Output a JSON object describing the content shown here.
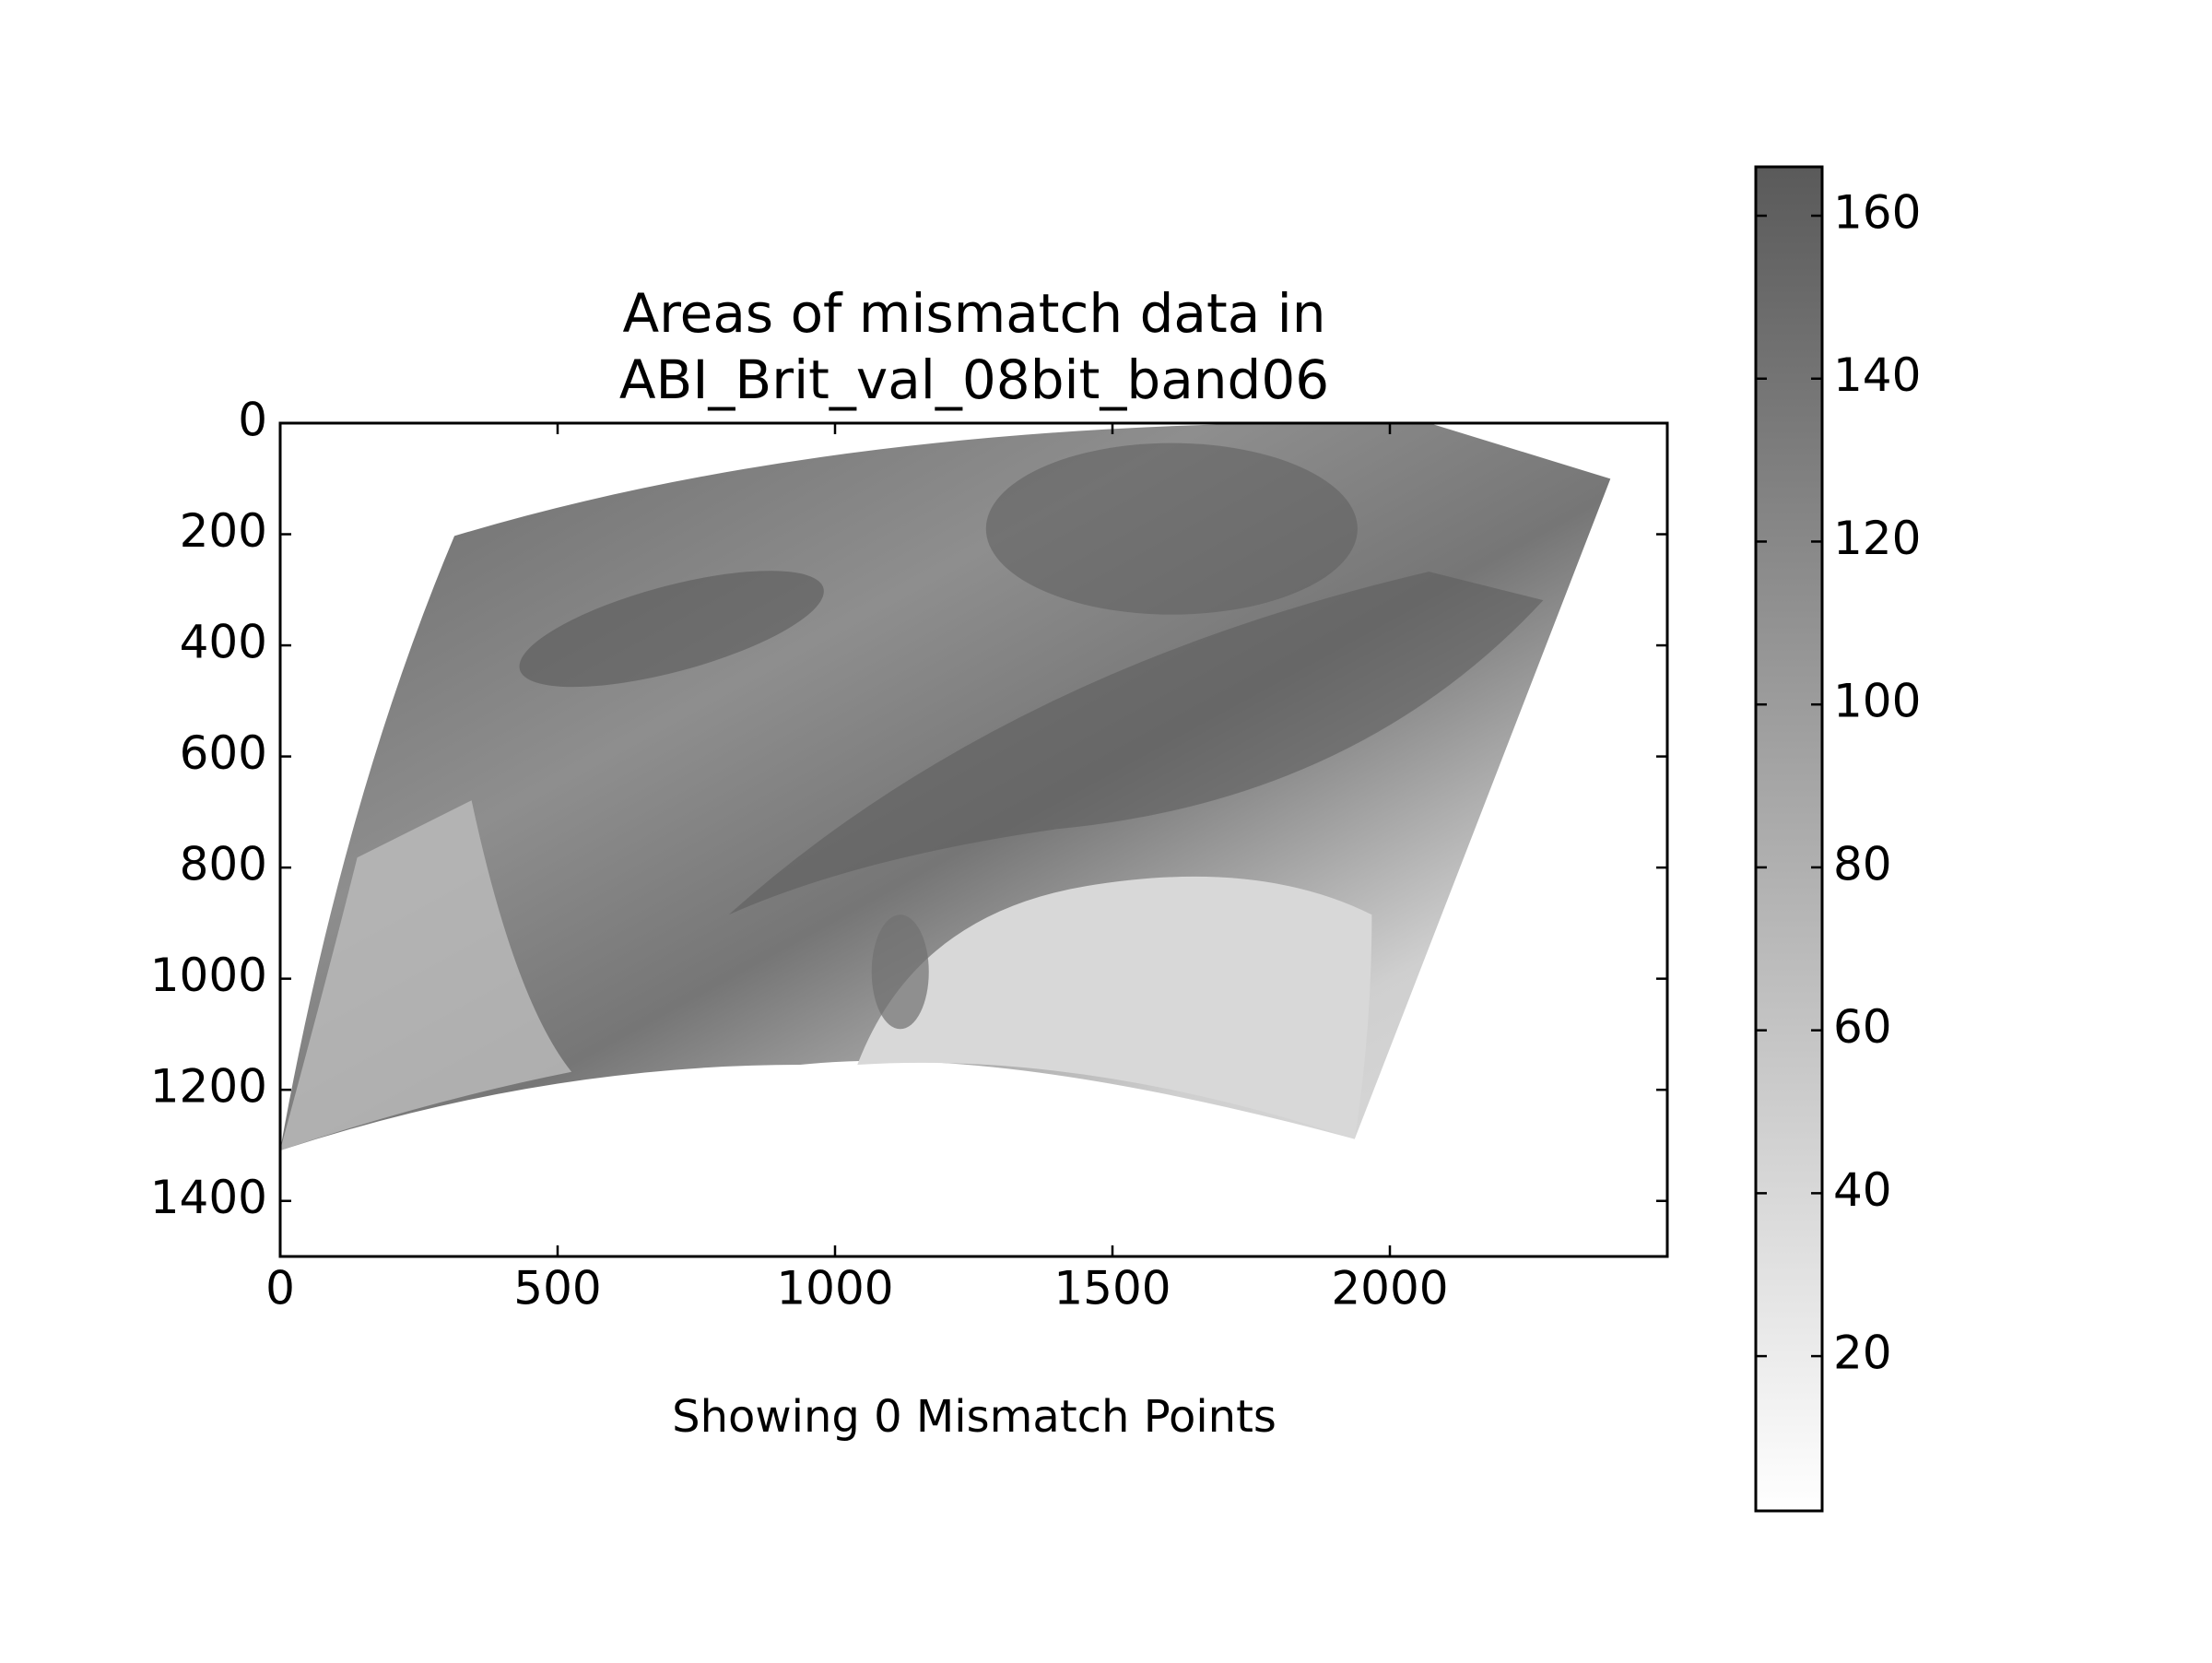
{
  "chart_data": {
    "type": "image",
    "title": [
      "Areas of mismatch data in",
      "ABI_Brit_val_08bit_band06"
    ],
    "xlabel": "Showing 0 Mismatch Points",
    "xlim": [
      0,
      2500
    ],
    "xticks": [
      0,
      500,
      1000,
      1500,
      2000
    ],
    "ylim": [
      1500,
      0
    ],
    "yticks": [
      0,
      200,
      400,
      600,
      800,
      1000,
      1200,
      1400
    ],
    "colorbar": {
      "lim": [
        1,
        166
      ],
      "ticks": [
        20,
        40,
        60,
        80,
        100,
        120,
        140,
        160
      ],
      "colormap": "gray_r"
    }
  }
}
